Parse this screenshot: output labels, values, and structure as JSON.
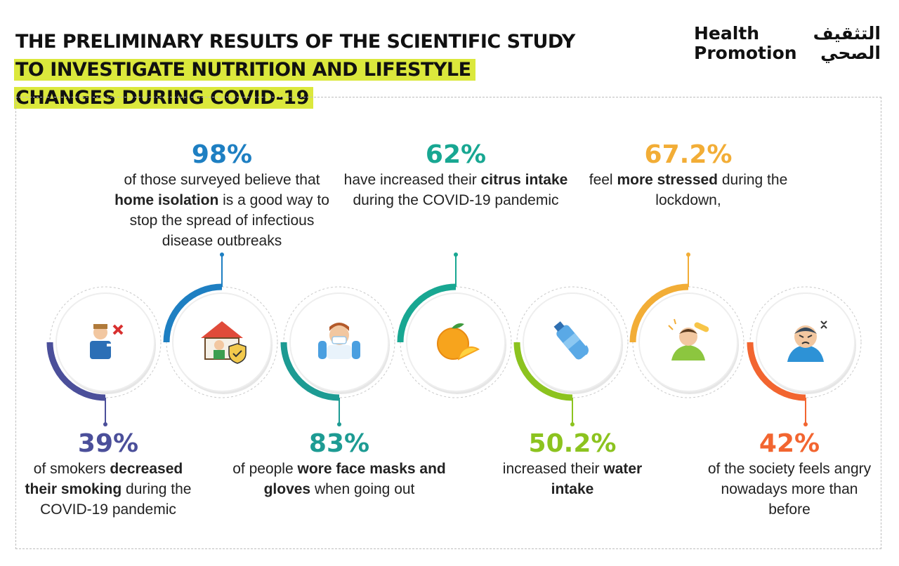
{
  "title": {
    "line1": "THE PRELIMINARY RESULTS OF THE SCIENTIFIC STUDY",
    "line2": "TO INVESTIGATE NUTRITION AND LIFESTYLE",
    "line3": "CHANGES DURING COVID-19"
  },
  "logo": {
    "en_line1": "Health",
    "en_line2": "Promotion",
    "ar_line1": "التثقيف",
    "ar_line2": "الصحي"
  },
  "stats": [
    {
      "id": "smoking",
      "value": "39%",
      "pre": "of smokers ",
      "bold": "decreased their smoking",
      "post": " during the COVID-19 pandemic",
      "color": "#4b4f9a",
      "position": "bottom",
      "icon": "smoker-no-icon"
    },
    {
      "id": "isolation",
      "value": "98%",
      "pre": "of those surveyed believe that ",
      "bold": "home isolation",
      "post": " is a good way to stop the spread of infectious disease outbreaks",
      "color": "#1e7fc2",
      "position": "top",
      "icon": "home-shield-icon"
    },
    {
      "id": "masks",
      "value": "83%",
      "pre": "of people ",
      "bold": "wore face masks and gloves",
      "post": " when going out",
      "color": "#1d9b93",
      "position": "bottom",
      "icon": "face-mask-icon"
    },
    {
      "id": "citrus",
      "value": "62%",
      "pre": "have increased their ",
      "bold": "citrus intake",
      "post": " during the COVID-19 pandemic",
      "color": "#18a792",
      "position": "top",
      "icon": "orange-fruit-icon"
    },
    {
      "id": "water",
      "value": "50.2%",
      "pre": "increased their ",
      "bold": "water intake",
      "post": "",
      "color": "#8cc31f",
      "position": "bottom",
      "icon": "water-bottle-icon"
    },
    {
      "id": "stress",
      "value": "67.2%",
      "pre": "feel ",
      "bold": "more stressed",
      "post": " during the lockdown,",
      "color": "#f2ad36",
      "position": "top",
      "icon": "stressed-person-icon"
    },
    {
      "id": "anger",
      "value": "42%",
      "pre": "of the society feels angry nowadays more than before",
      "bold": "",
      "post": "",
      "color": "#f26530",
      "position": "bottom",
      "icon": "angry-person-icon"
    }
  ]
}
